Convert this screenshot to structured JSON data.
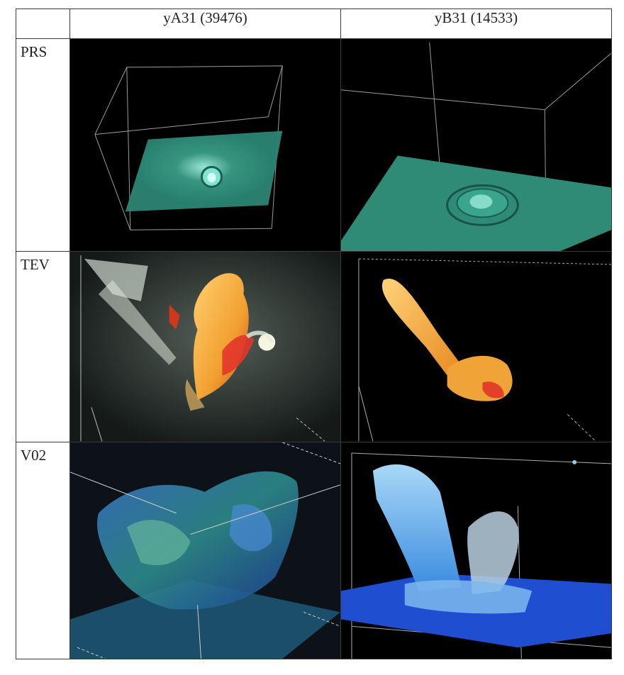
{
  "columns": [
    "yA31 (39476)",
    "yB31 (14533)"
  ],
  "rows": [
    {
      "label": "PRS",
      "icons": [
        "volume-render-prs-ya31",
        "volume-render-prs-yb31"
      ]
    },
    {
      "label": "TEV",
      "icons": [
        "volume-render-tev-ya31",
        "volume-render-tev-yb31"
      ]
    },
    {
      "label": "V02",
      "icons": [
        "volume-render-v02-ya31",
        "volume-render-v02-yb31"
      ]
    }
  ],
  "colors": {
    "prs_plane": "#2f8f7a",
    "tev_orange": "#f2a030",
    "tev_white": "#e8eee0",
    "v02_blue": "#2a5ad8",
    "v02_light": "#8fc7f0"
  }
}
